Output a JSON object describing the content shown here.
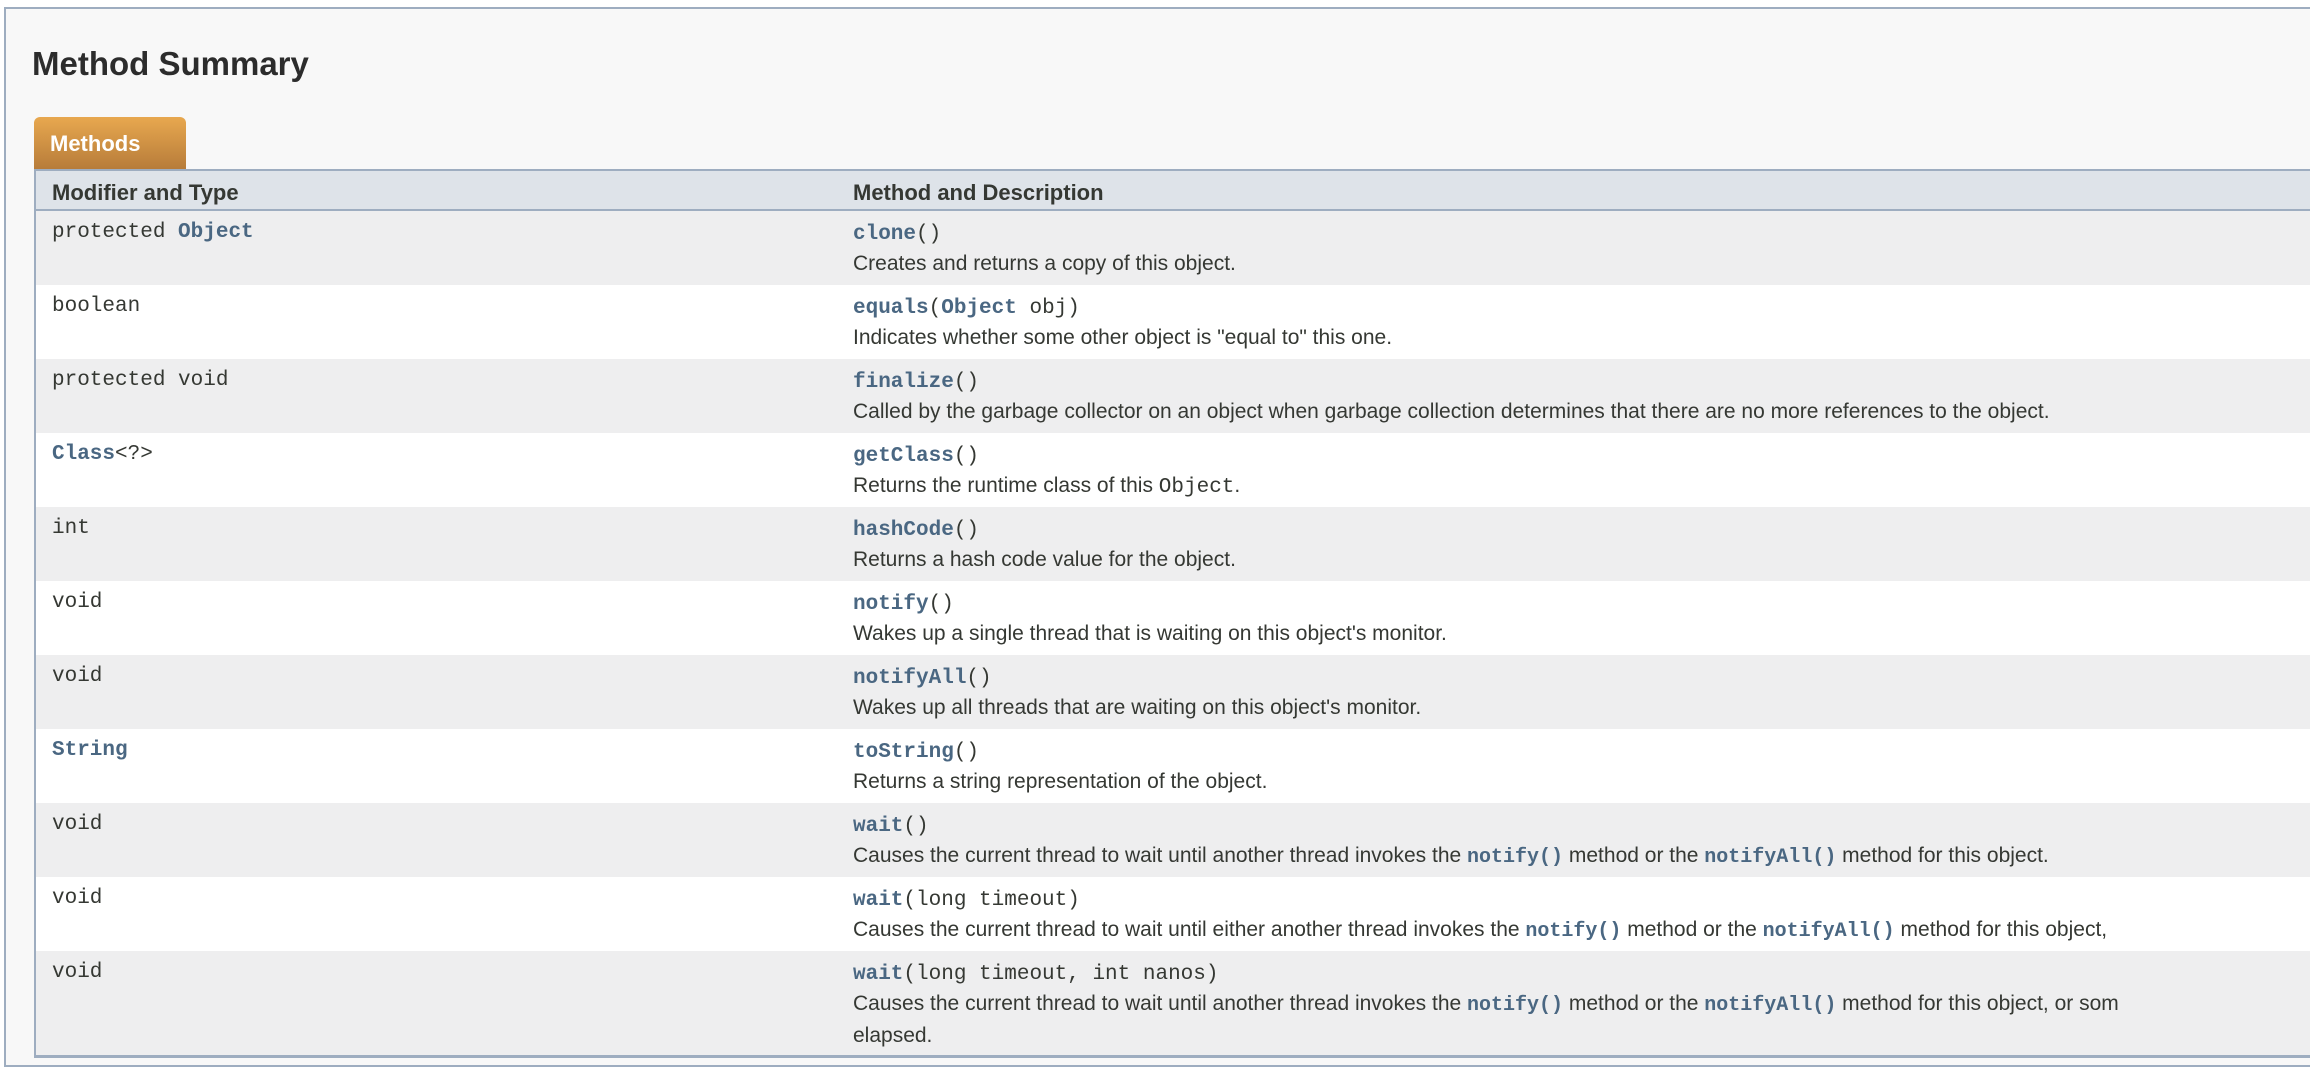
{
  "title": "Method Summary",
  "tab": "Methods",
  "columns": [
    "Modifier and Type",
    "Method and Description"
  ],
  "colors": {
    "link": "#4a6782",
    "tab": "#dc9a48",
    "header_bg": "#dee3e9",
    "alt_row": "#eeeeef"
  },
  "rows": [
    {
      "type": [
        {
          "t": "protected "
        },
        {
          "t": "Object",
          "link": true
        }
      ],
      "sig": [
        {
          "t": "clone",
          "link": true
        },
        {
          "t": "()"
        }
      ],
      "desc": [
        {
          "t": "Creates and returns a copy of this object."
        }
      ]
    },
    {
      "type": [
        {
          "t": "boolean"
        }
      ],
      "sig": [
        {
          "t": "equals",
          "link": true
        },
        {
          "t": "("
        },
        {
          "t": "Object",
          "link": true
        },
        {
          "t": " obj)"
        }
      ],
      "desc": [
        {
          "t": "Indicates whether some other object is \"equal to\" this one."
        }
      ]
    },
    {
      "type": [
        {
          "t": "protected void"
        }
      ],
      "sig": [
        {
          "t": "finalize",
          "link": true
        },
        {
          "t": "()"
        }
      ],
      "desc": [
        {
          "t": "Called by the garbage collector on an object when garbage collection determines that there are no more references to the object."
        }
      ]
    },
    {
      "type": [
        {
          "t": "Class",
          "link": true
        },
        {
          "t": "<?>"
        }
      ],
      "sig": [
        {
          "t": "getClass",
          "link": true
        },
        {
          "t": "()"
        }
      ],
      "desc": [
        {
          "t": "Returns the runtime class of this "
        },
        {
          "t": "Object",
          "code": true
        },
        {
          "t": "."
        }
      ]
    },
    {
      "type": [
        {
          "t": "int"
        }
      ],
      "sig": [
        {
          "t": "hashCode",
          "link": true
        },
        {
          "t": "()"
        }
      ],
      "desc": [
        {
          "t": "Returns a hash code value for the object."
        }
      ]
    },
    {
      "type": [
        {
          "t": "void"
        }
      ],
      "sig": [
        {
          "t": "notify",
          "link": true
        },
        {
          "t": "()"
        }
      ],
      "desc": [
        {
          "t": "Wakes up a single thread that is waiting on this object's monitor."
        }
      ]
    },
    {
      "type": [
        {
          "t": "void"
        }
      ],
      "sig": [
        {
          "t": "notifyAll",
          "link": true
        },
        {
          "t": "()"
        }
      ],
      "desc": [
        {
          "t": "Wakes up all threads that are waiting on this object's monitor."
        }
      ]
    },
    {
      "type": [
        {
          "t": "String",
          "link": true
        }
      ],
      "sig": [
        {
          "t": "toString",
          "link": true
        },
        {
          "t": "()"
        }
      ],
      "desc": [
        {
          "t": "Returns a string representation of the object."
        }
      ]
    },
    {
      "type": [
        {
          "t": "void"
        }
      ],
      "sig": [
        {
          "t": "wait",
          "link": true
        },
        {
          "t": "()"
        }
      ],
      "desc": [
        {
          "t": "Causes the current thread to wait until another thread invokes the "
        },
        {
          "t": "notify()",
          "link": true
        },
        {
          "t": " method or the "
        },
        {
          "t": "notifyAll()",
          "link": true
        },
        {
          "t": " method for this object."
        }
      ]
    },
    {
      "type": [
        {
          "t": "void"
        }
      ],
      "sig": [
        {
          "t": "wait",
          "link": true
        },
        {
          "t": "(long timeout)"
        }
      ],
      "desc": [
        {
          "t": "Causes the current thread to wait until either another thread invokes the "
        },
        {
          "t": "notify()",
          "link": true
        },
        {
          "t": " method or the "
        },
        {
          "t": "notifyAll()",
          "link": true
        },
        {
          "t": " method for this object, "
        }
      ]
    },
    {
      "type": [
        {
          "t": "void"
        }
      ],
      "sig": [
        {
          "t": "wait",
          "link": true
        },
        {
          "t": "(long timeout, int nanos)"
        }
      ],
      "desc": [
        {
          "t": "Causes the current thread to wait until another thread invokes the "
        },
        {
          "t": "notify()",
          "link": true
        },
        {
          "t": " method or the "
        },
        {
          "t": "notifyAll()",
          "link": true
        },
        {
          "t": " method for this object, or som"
        },
        {
          "t": "elapsed.",
          "br": true
        }
      ]
    }
  ]
}
